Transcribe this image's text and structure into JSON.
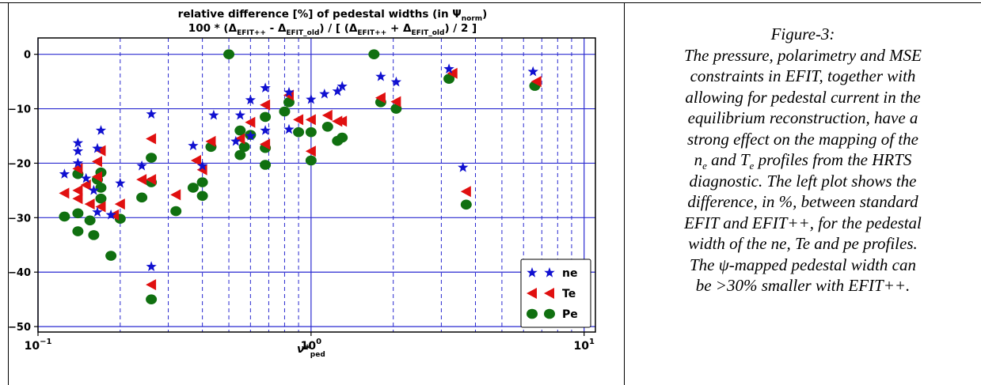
{
  "chart_data": {
    "type": "scatter",
    "title": "relative difference [%] of pedestal widths (in Ψnorm)",
    "title_main": "relative difference [%] of pedestal widths (in Ψ",
    "title_sub": "norm",
    "subtitle": {
      "parts": [
        {
          "t": "100 * (Δ",
          "sub": false
        },
        {
          "t": "EFIT++",
          "sub": true
        },
        {
          "t": " - Δ",
          "sub": false
        },
        {
          "t": "EFIT_old",
          "sub": true
        },
        {
          "t": ") / [ (Δ",
          "sub": false
        },
        {
          "t": "EFIT++",
          "sub": true
        },
        {
          "t": " + Δ",
          "sub": false
        },
        {
          "t": "EFIT_old",
          "sub": true
        },
        {
          "t": ") / 2 ]",
          "sub": false
        }
      ]
    },
    "xlabel": "ν*ped",
    "xlabel_main": "ν*",
    "xlabel_sub": "ped",
    "x_scale": "log",
    "xlim": [
      0.1,
      11
    ],
    "ylim": [
      -51,
      3
    ],
    "xticks": [
      0.1,
      1,
      10
    ],
    "xtick_labels": [
      {
        "base": "10",
        "exp": "−1"
      },
      {
        "base": "10",
        "exp": "0"
      },
      {
        "base": "10",
        "exp": "1"
      }
    ],
    "yticks": [
      0,
      -10,
      -20,
      -30,
      -40,
      -50
    ],
    "ytick_labels": [
      "0",
      "−10",
      "−20",
      "−30",
      "−40",
      "−50"
    ],
    "grid": true,
    "legend_position": "lower-right",
    "series": [
      {
        "name": "ne",
        "marker": "star",
        "color": "#1010d0",
        "points": [
          [
            0.125,
            -22
          ],
          [
            0.14,
            -16.3
          ],
          [
            0.14,
            -17.8
          ],
          [
            0.14,
            -20
          ],
          [
            0.15,
            -22.8
          ],
          [
            0.16,
            -25
          ],
          [
            0.165,
            -17.3
          ],
          [
            0.17,
            -14
          ],
          [
            0.165,
            -29
          ],
          [
            0.185,
            -29.5
          ],
          [
            0.2,
            -23.7
          ],
          [
            0.24,
            -20.5
          ],
          [
            0.26,
            -11
          ],
          [
            0.26,
            -39
          ],
          [
            0.37,
            -16.8
          ],
          [
            0.4,
            -20.5
          ],
          [
            0.44,
            -11.2
          ],
          [
            0.53,
            -16
          ],
          [
            0.55,
            -11.2
          ],
          [
            0.6,
            -8.4
          ],
          [
            0.6,
            -15
          ],
          [
            0.68,
            -6.2
          ],
          [
            0.68,
            -14
          ],
          [
            0.83,
            -7
          ],
          [
            0.83,
            -13.8
          ],
          [
            1.0,
            -8.3
          ],
          [
            1.12,
            -7.3
          ],
          [
            1.25,
            -6.8
          ],
          [
            1.3,
            -5.9
          ],
          [
            1.8,
            -4.1
          ],
          [
            2.05,
            -5.1
          ],
          [
            3.2,
            -2.7
          ],
          [
            3.6,
            -20.8
          ],
          [
            6.5,
            -3.2
          ]
        ]
      },
      {
        "name": "Te",
        "marker": "triangle-left",
        "color": "#e01010",
        "points": [
          [
            0.125,
            -25.5
          ],
          [
            0.14,
            -21
          ],
          [
            0.14,
            -25
          ],
          [
            0.14,
            -26.5
          ],
          [
            0.15,
            -24
          ],
          [
            0.155,
            -27.5
          ],
          [
            0.165,
            -19.7
          ],
          [
            0.165,
            -22.5
          ],
          [
            0.17,
            -17.7
          ],
          [
            0.17,
            -28
          ],
          [
            0.19,
            -29.5
          ],
          [
            0.2,
            -27.5
          ],
          [
            0.24,
            -23
          ],
          [
            0.26,
            -15.5
          ],
          [
            0.26,
            -23
          ],
          [
            0.26,
            -42.3
          ],
          [
            0.32,
            -25.8
          ],
          [
            0.38,
            -19.5
          ],
          [
            0.4,
            -21.2
          ],
          [
            0.43,
            -16
          ],
          [
            0.55,
            -15.5
          ],
          [
            0.6,
            -12.5
          ],
          [
            0.68,
            -9.3
          ],
          [
            0.68,
            -16.5
          ],
          [
            0.83,
            -7.5
          ],
          [
            0.9,
            -12
          ],
          [
            1.0,
            -12
          ],
          [
            1.0,
            -17.8
          ],
          [
            1.15,
            -11.2
          ],
          [
            1.25,
            -12.3
          ],
          [
            1.3,
            -12.3
          ],
          [
            1.8,
            -8
          ],
          [
            2.05,
            -8.7
          ],
          [
            3.3,
            -3.5
          ],
          [
            3.7,
            -25.2
          ],
          [
            6.7,
            -5
          ]
        ]
      },
      {
        "name": "Pe",
        "marker": "circle",
        "color": "#107010",
        "points": [
          [
            0.125,
            -29.8
          ],
          [
            0.14,
            -22
          ],
          [
            0.14,
            -29.2
          ],
          [
            0.14,
            -32.5
          ],
          [
            0.155,
            -30.5
          ],
          [
            0.16,
            -33.2
          ],
          [
            0.165,
            -23
          ],
          [
            0.17,
            -21.7
          ],
          [
            0.17,
            -24.5
          ],
          [
            0.17,
            -26.5
          ],
          [
            0.185,
            -37
          ],
          [
            0.2,
            -30.2
          ],
          [
            0.24,
            -26.3
          ],
          [
            0.26,
            -19
          ],
          [
            0.26,
            -23.5
          ],
          [
            0.26,
            -45
          ],
          [
            0.32,
            -28.8
          ],
          [
            0.37,
            -24.5
          ],
          [
            0.4,
            -23.5
          ],
          [
            0.4,
            -26
          ],
          [
            0.43,
            -17
          ],
          [
            0.5,
            0
          ],
          [
            0.55,
            -14
          ],
          [
            0.55,
            -18.5
          ],
          [
            0.57,
            -17
          ],
          [
            0.6,
            -14.8
          ],
          [
            0.68,
            -11.5
          ],
          [
            0.68,
            -17.2
          ],
          [
            0.68,
            -20.3
          ],
          [
            0.8,
            -10.5
          ],
          [
            0.83,
            -8.8
          ],
          [
            0.9,
            -14.3
          ],
          [
            1.0,
            -14.3
          ],
          [
            1.0,
            -19.5
          ],
          [
            1.15,
            -13.3
          ],
          [
            1.25,
            -15.9
          ],
          [
            1.3,
            -15.3
          ],
          [
            1.7,
            0
          ],
          [
            1.8,
            -8.8
          ],
          [
            2.05,
            -10
          ],
          [
            3.2,
            -4.5
          ],
          [
            3.7,
            -27.6
          ],
          [
            6.6,
            -5.8
          ]
        ]
      }
    ]
  },
  "caption": {
    "heading": "Figure-3:",
    "line1": "The pressure, polarimetry and MSE",
    "line2": "constraints in EFIT, together with",
    "line3": "allowing for pedestal current in the",
    "line4": "equilibrium reconstruction, have a",
    "line5": "strong effect on the mapping of the",
    "line6_n": "n",
    "line6_nsub": "e",
    "line6_and": " and T",
    "line6_tsub": "e",
    "line6_rest": " profiles from the HRTS",
    "line7": "diagnostic. The left plot shows the",
    "line8": "difference, in %, between standard",
    "line9": "EFIT and EFIT++, for the pedestal",
    "line10": "width of the ne, Te and pe profiles.",
    "line11": "The ψ-mapped pedestal width can",
    "line12": "be >30% smaller with EFIT++."
  }
}
